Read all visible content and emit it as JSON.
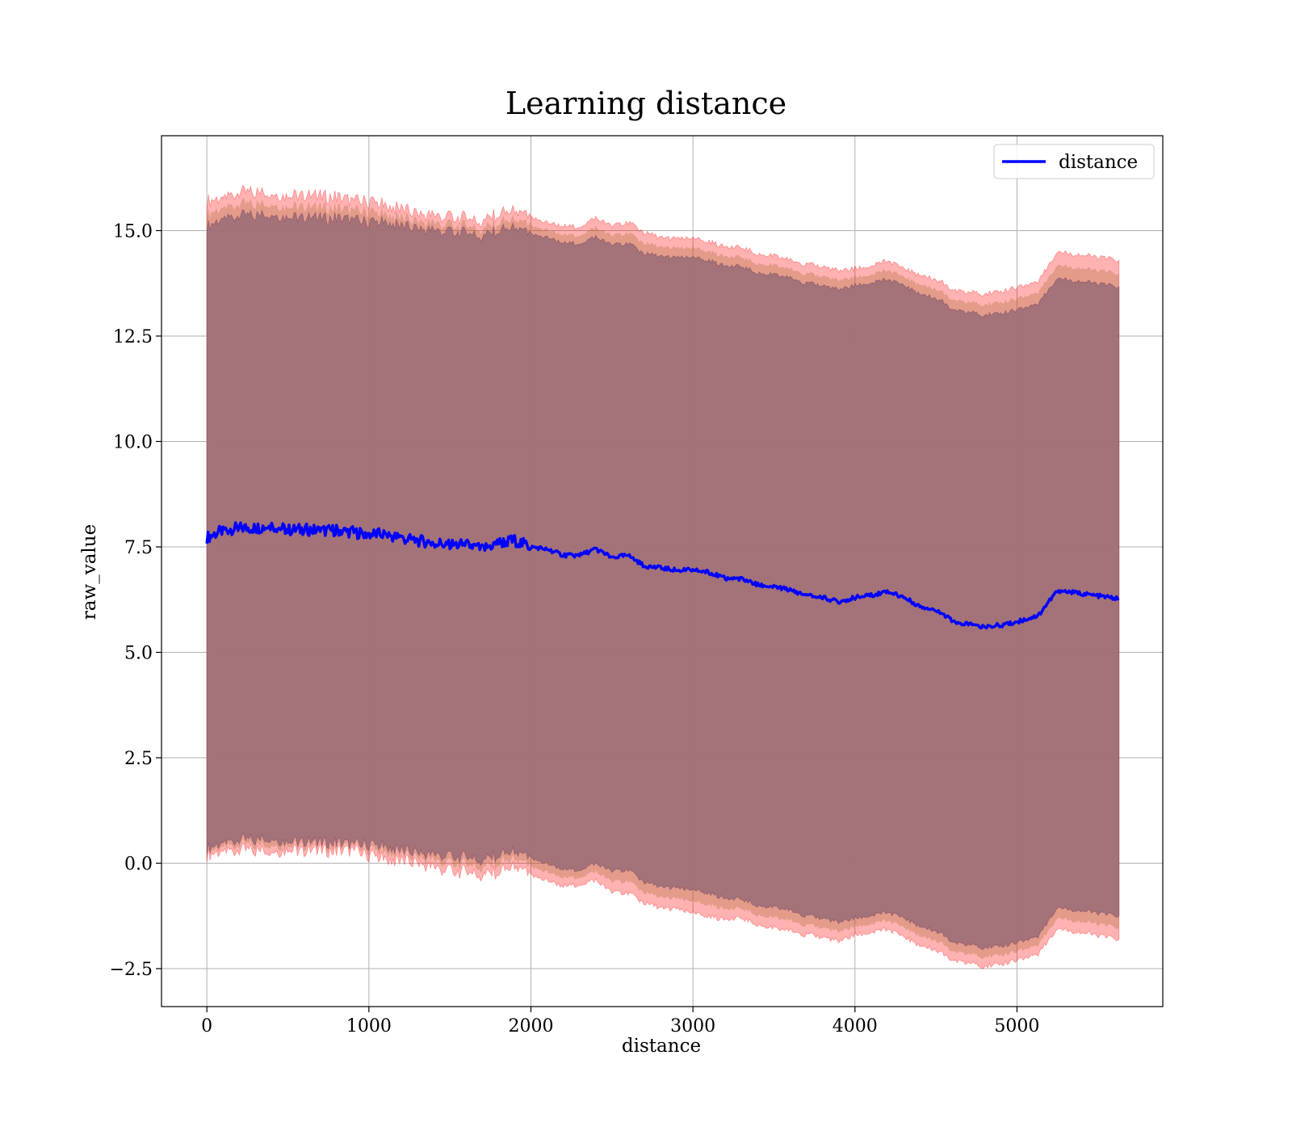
{
  "chart_data": {
    "type": "line",
    "title": "Learning distance",
    "xlabel": "distance",
    "ylabel": "raw_value",
    "xlim": [
      -280,
      5900
    ],
    "ylim": [
      -3.4,
      17.25
    ],
    "xticks": [
      0,
      1000,
      2000,
      3000,
      4000,
      5000
    ],
    "xtick_labels": [
      "0",
      "1000",
      "2000",
      "3000",
      "4000",
      "5000"
    ],
    "yticks": [
      -2.5,
      0.0,
      2.5,
      5.0,
      7.5,
      10.0,
      12.5,
      15.0
    ],
    "ytick_labels": [
      "−2.5",
      "0.0",
      "2.5",
      "5.0",
      "7.5",
      "10.0",
      "12.5",
      "15.0"
    ],
    "grid": true,
    "legend_position": "top-right",
    "series": [
      {
        "name": "distance",
        "color": "#0000ff",
        "x": [
          0,
          100,
          200,
          300,
          400,
          500,
          600,
          700,
          800,
          900,
          1000,
          1100,
          1200,
          1300,
          1400,
          1500,
          1600,
          1700,
          1800,
          1900,
          2000,
          2100,
          2200,
          2300,
          2400,
          2500,
          2600,
          2700,
          2800,
          2900,
          3000,
          3100,
          3200,
          3300,
          3400,
          3500,
          3600,
          3700,
          3800,
          3900,
          4000,
          4100,
          4200,
          4300,
          4400,
          4500,
          4550,
          4620,
          4700,
          4780,
          4950,
          5130,
          5250,
          5630
        ],
        "y": [
          7.72,
          7.9,
          7.95,
          7.95,
          8.0,
          7.9,
          7.92,
          7.88,
          7.9,
          7.85,
          7.8,
          7.8,
          7.7,
          7.65,
          7.6,
          7.55,
          7.55,
          7.45,
          7.6,
          7.65,
          7.5,
          7.45,
          7.3,
          7.3,
          7.45,
          7.25,
          7.3,
          7.05,
          7.0,
          6.95,
          6.95,
          6.9,
          6.75,
          6.75,
          6.6,
          6.55,
          6.48,
          6.35,
          6.3,
          6.2,
          6.3,
          6.35,
          6.45,
          6.3,
          6.1,
          6.0,
          5.9,
          5.68,
          5.68,
          5.6,
          5.67,
          5.87,
          6.47,
          6.27
        ],
        "band_sd_min": [
          0.2,
          0.3,
          0.3,
          0.3,
          0.3,
          0.3,
          0.3,
          0.3,
          0.3,
          0.3,
          0.2,
          0.1,
          0.05,
          0.0,
          -0.1,
          -0.2,
          -0.2,
          -0.3,
          -0.2,
          -0.1,
          -0.3,
          -0.4,
          -0.55,
          -0.5,
          -0.4,
          -0.7,
          -0.7,
          -0.95,
          -1.05,
          -1.1,
          -1.2,
          -1.25,
          -1.35,
          -1.3,
          -1.45,
          -1.55,
          -1.6,
          -1.7,
          -1.75,
          -1.85,
          -1.7,
          -1.65,
          -1.55,
          -1.75,
          -1.95,
          -2.05,
          -2.15,
          -2.35,
          -2.35,
          -2.45,
          -2.35,
          -2.15,
          -1.55,
          -1.8
        ],
        "band_sd_max": [
          15.7,
          15.8,
          15.9,
          15.9,
          15.9,
          15.8,
          15.85,
          15.8,
          15.8,
          15.7,
          15.7,
          15.6,
          15.5,
          15.4,
          15.35,
          15.3,
          15.3,
          15.2,
          15.4,
          15.45,
          15.3,
          15.2,
          15.1,
          15.1,
          15.3,
          15.1,
          15.2,
          14.95,
          14.85,
          14.8,
          14.8,
          14.75,
          14.6,
          14.6,
          14.45,
          14.4,
          14.3,
          14.2,
          14.15,
          14.05,
          14.1,
          14.15,
          14.3,
          14.1,
          13.95,
          13.85,
          13.75,
          13.55,
          13.55,
          13.5,
          13.6,
          13.8,
          14.5,
          14.3
        ],
        "band_se_min": [
          0.35,
          0.5,
          0.55,
          0.55,
          0.6,
          0.5,
          0.52,
          0.48,
          0.5,
          0.45,
          0.45,
          0.4,
          0.3,
          0.25,
          0.2,
          0.15,
          0.15,
          0.05,
          0.2,
          0.25,
          0.1,
          0.0,
          -0.15,
          -0.15,
          0.0,
          -0.2,
          -0.15,
          -0.45,
          -0.55,
          -0.6,
          -0.65,
          -0.7,
          -0.85,
          -0.85,
          -1.0,
          -1.05,
          -1.12,
          -1.25,
          -1.3,
          -1.4,
          -1.3,
          -1.25,
          -1.15,
          -1.3,
          -1.5,
          -1.6,
          -1.7,
          -1.92,
          -1.92,
          -2.0,
          -1.93,
          -1.73,
          -1.05,
          -1.25
        ],
        "band_se_max": [
          15.1,
          15.3,
          15.35,
          15.35,
          15.4,
          15.3,
          15.32,
          15.28,
          15.3,
          15.25,
          15.2,
          15.2,
          15.1,
          15.05,
          15.0,
          14.95,
          14.95,
          14.85,
          15.0,
          15.05,
          14.9,
          14.85,
          14.7,
          14.7,
          14.85,
          14.65,
          14.7,
          14.45,
          14.4,
          14.35,
          14.35,
          14.3,
          14.15,
          14.15,
          14.0,
          13.95,
          13.88,
          13.75,
          13.7,
          13.6,
          13.7,
          13.75,
          13.85,
          13.7,
          13.5,
          13.4,
          13.3,
          13.08,
          13.08,
          13.0,
          13.07,
          13.27,
          13.87,
          13.67
        ]
      }
    ],
    "band_colors": {
      "outer": "#ff0000",
      "inner": "#800000",
      "overlap": "#a07078"
    }
  }
}
